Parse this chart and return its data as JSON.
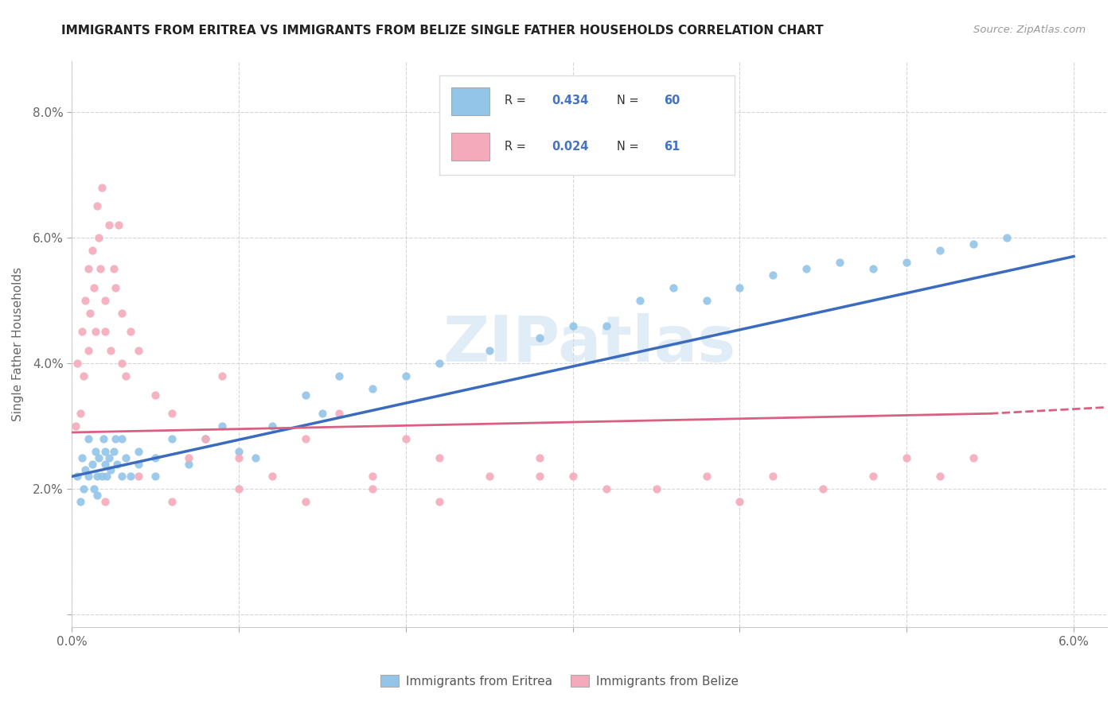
{
  "title": "IMMIGRANTS FROM ERITREA VS IMMIGRANTS FROM BELIZE SINGLE FATHER HOUSEHOLDS CORRELATION CHART",
  "source": "Source: ZipAtlas.com",
  "ylabel": "Single Father Households",
  "xlim": [
    0.0,
    0.062
  ],
  "ylim": [
    -0.002,
    0.088
  ],
  "r_eritrea": 0.434,
  "n_eritrea": 60,
  "r_belize": 0.024,
  "n_belize": 61,
  "color_eritrea": "#92C5E8",
  "color_belize": "#F4AABB",
  "line_color_eritrea": "#3A6BBF",
  "line_color_belize": "#D96080",
  "watermark": "ZIPatlas",
  "background_color": "#ffffff",
  "scatter_eritrea_x": [
    0.0003,
    0.0005,
    0.0006,
    0.0007,
    0.0008,
    0.001,
    0.001,
    0.0012,
    0.0013,
    0.0014,
    0.0015,
    0.0015,
    0.0016,
    0.0018,
    0.0019,
    0.002,
    0.002,
    0.0021,
    0.0022,
    0.0023,
    0.0025,
    0.0026,
    0.0027,
    0.003,
    0.003,
    0.0032,
    0.0035,
    0.004,
    0.004,
    0.005,
    0.005,
    0.006,
    0.007,
    0.008,
    0.009,
    0.01,
    0.011,
    0.012,
    0.014,
    0.015,
    0.016,
    0.018,
    0.02,
    0.022,
    0.025,
    0.028,
    0.03,
    0.032,
    0.034,
    0.036,
    0.038,
    0.04,
    0.042,
    0.044,
    0.046,
    0.048,
    0.05,
    0.052,
    0.054,
    0.056
  ],
  "scatter_eritrea_y": [
    0.022,
    0.018,
    0.025,
    0.02,
    0.023,
    0.022,
    0.028,
    0.024,
    0.02,
    0.026,
    0.022,
    0.019,
    0.025,
    0.022,
    0.028,
    0.024,
    0.026,
    0.022,
    0.025,
    0.023,
    0.026,
    0.028,
    0.024,
    0.022,
    0.028,
    0.025,
    0.022,
    0.024,
    0.026,
    0.025,
    0.022,
    0.028,
    0.024,
    0.028,
    0.03,
    0.026,
    0.025,
    0.03,
    0.035,
    0.032,
    0.038,
    0.036,
    0.038,
    0.04,
    0.042,
    0.044,
    0.046,
    0.046,
    0.05,
    0.052,
    0.05,
    0.052,
    0.054,
    0.055,
    0.056,
    0.055,
    0.056,
    0.058,
    0.059,
    0.06
  ],
  "scatter_belize_x": [
    0.0002,
    0.0003,
    0.0005,
    0.0006,
    0.0007,
    0.0008,
    0.001,
    0.001,
    0.0011,
    0.0012,
    0.0013,
    0.0014,
    0.0015,
    0.0016,
    0.0017,
    0.0018,
    0.002,
    0.002,
    0.0022,
    0.0023,
    0.0025,
    0.0026,
    0.0028,
    0.003,
    0.003,
    0.0032,
    0.0035,
    0.004,
    0.005,
    0.006,
    0.007,
    0.008,
    0.009,
    0.01,
    0.012,
    0.014,
    0.016,
    0.018,
    0.02,
    0.022,
    0.025,
    0.028,
    0.03,
    0.032,
    0.035,
    0.038,
    0.04,
    0.042,
    0.045,
    0.048,
    0.05,
    0.052,
    0.054,
    0.028,
    0.022,
    0.018,
    0.014,
    0.01,
    0.006,
    0.004,
    0.002
  ],
  "scatter_belize_y": [
    0.03,
    0.04,
    0.032,
    0.045,
    0.038,
    0.05,
    0.042,
    0.055,
    0.048,
    0.058,
    0.052,
    0.045,
    0.065,
    0.06,
    0.055,
    0.068,
    0.05,
    0.045,
    0.062,
    0.042,
    0.055,
    0.052,
    0.062,
    0.048,
    0.04,
    0.038,
    0.045,
    0.042,
    0.035,
    0.032,
    0.025,
    0.028,
    0.038,
    0.025,
    0.022,
    0.028,
    0.032,
    0.02,
    0.028,
    0.025,
    0.022,
    0.025,
    0.022,
    0.02,
    0.02,
    0.022,
    0.018,
    0.022,
    0.02,
    0.022,
    0.025,
    0.022,
    0.025,
    0.022,
    0.018,
    0.022,
    0.018,
    0.02,
    0.018,
    0.022,
    0.018
  ]
}
